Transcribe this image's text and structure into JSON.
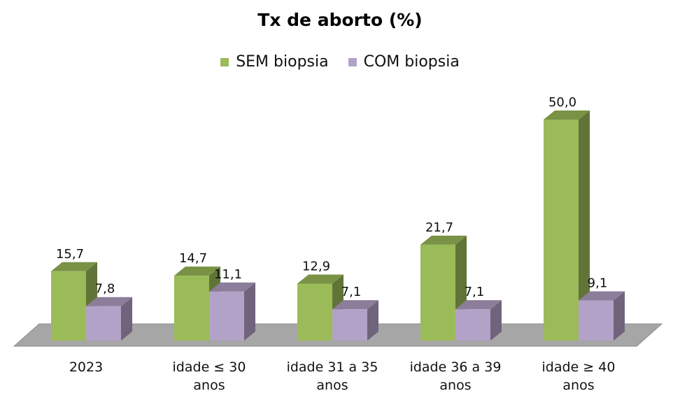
{
  "chart_data": {
    "type": "bar",
    "title": "Tx de aborto (%)",
    "categories": [
      [
        "2023"
      ],
      [
        "idade ≤ 30",
        "anos"
      ],
      [
        "idade 31 a 35",
        "anos"
      ],
      [
        "idade 36 a 39",
        "anos"
      ],
      [
        "idade ≥ 40",
        "anos"
      ]
    ],
    "series": [
      {
        "name": "SEM biopsia",
        "values": [
          15.7,
          14.7,
          12.9,
          21.7,
          50.0
        ],
        "labels": [
          "15,7",
          "14,7",
          "12,9",
          "21,7",
          "50,0"
        ],
        "color": "#9bbb59"
      },
      {
        "name": "COM biopsia",
        "values": [
          7.8,
          11.1,
          7.1,
          7.1,
          9.1
        ],
        "labels": [
          "7,8",
          "11,1",
          "7,1",
          "7,1",
          "9,1"
        ],
        "color": "#b3a2c7"
      }
    ],
    "ylim": [
      0,
      50
    ],
    "legend_position": "top",
    "grid": false,
    "style": "3d-column"
  }
}
